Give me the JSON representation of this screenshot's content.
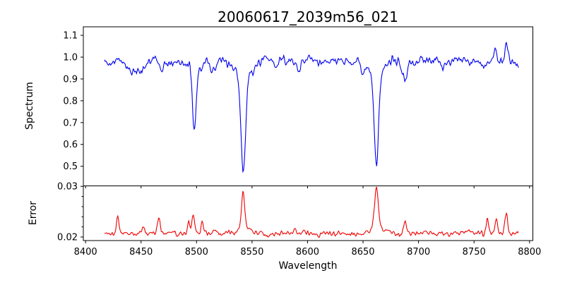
{
  "figure": {
    "title": "20060617_2039m56_021",
    "xlabel": "Wavelength",
    "background": "#ffffff",
    "axis_color": "#000000"
  },
  "chart_data": [
    {
      "id": "spectrum",
      "type": "line",
      "ylabel": "Spectrum",
      "color": "#0000ee",
      "legend": "none",
      "grid": false,
      "x_range": [
        8417,
        8790
      ],
      "xlim": [
        8398,
        8803
      ],
      "ylim": [
        0.41,
        1.139
      ],
      "xticks": [
        8400,
        8450,
        8500,
        8550,
        8600,
        8650,
        8700,
        8750,
        8800
      ],
      "ytick_labels": [
        "1.1",
        "1.0",
        "0.9",
        "0.8",
        "0.7",
        "0.6",
        "0.5"
      ],
      "ytick_values": [
        1.1,
        1.0,
        0.9,
        0.8,
        0.7,
        0.6,
        0.5
      ],
      "continuum_level": 0.975,
      "noise_sigma": 0.016,
      "absorption_lines": [
        {
          "center": 8446,
          "depth": 0.05,
          "sigma": 5.0
        },
        {
          "center": 8468,
          "depth": 0.045,
          "sigma": 1.8
        },
        {
          "center": 8498.02,
          "depth": 0.27,
          "sigma": 1.6
        },
        {
          "center": 8498.02,
          "depth": 0.055,
          "sigma": 5.0
        },
        {
          "center": 8514,
          "depth": 0.045,
          "sigma": 1.8
        },
        {
          "center": 8542.09,
          "depth": 0.42,
          "sigma": 2.0
        },
        {
          "center": 8542.09,
          "depth": 0.085,
          "sigma": 7.0
        },
        {
          "center": 8572,
          "depth": 0.035,
          "sigma": 1.6
        },
        {
          "center": 8592,
          "depth": 0.04,
          "sigma": 1.6
        },
        {
          "center": 8640,
          "depth": 0.03,
          "sigma": 1.6
        },
        {
          "center": 8650,
          "depth": 0.04,
          "sigma": 1.6
        },
        {
          "center": 8662.14,
          "depth": 0.4,
          "sigma": 1.9
        },
        {
          "center": 8662.14,
          "depth": 0.075,
          "sigma": 6.0
        },
        {
          "center": 8688,
          "depth": 0.07,
          "sigma": 2.2
        }
      ],
      "emission_spikes": [
        {
          "center": 8769,
          "height": 0.07,
          "sigma": 1.2
        },
        {
          "center": 8779,
          "height": 0.085,
          "sigma": 1.2
        }
      ],
      "notable_minima": [
        {
          "wavelength": 8498,
          "value": 0.65
        },
        {
          "wavelength": 8542,
          "value": 0.47
        },
        {
          "wavelength": 8662,
          "value": 0.5
        }
      ]
    },
    {
      "id": "error",
      "type": "line",
      "ylabel": "Error",
      "color": "#ee0000",
      "legend": "none",
      "grid": false,
      "x_range": [
        8417,
        8790
      ],
      "xlim": [
        8398,
        8803
      ],
      "ylim": [
        0.0193,
        0.0301
      ],
      "xticks": [
        8400,
        8450,
        8500,
        8550,
        8600,
        8650,
        8700,
        8750,
        8800
      ],
      "ytick_labels": [
        "0.03",
        "0.02"
      ],
      "ytick_values": [
        0.03,
        0.02
      ],
      "ytick_minor_values": [
        0.028,
        0.026,
        0.024,
        0.022
      ],
      "baseline_level": 0.0208,
      "noise_sigma": 0.0004,
      "spikes": [
        {
          "center": 8429,
          "height": 0.0029,
          "sigma": 1.1
        },
        {
          "center": 8452,
          "height": 0.0013,
          "sigma": 0.9
        },
        {
          "center": 8466,
          "height": 0.0031,
          "sigma": 1.1
        },
        {
          "center": 8493,
          "height": 0.0024,
          "sigma": 1.0
        },
        {
          "center": 8497,
          "height": 0.0036,
          "sigma": 1.1
        },
        {
          "center": 8505,
          "height": 0.0022,
          "sigma": 1.0
        },
        {
          "center": 8542,
          "height": 0.007,
          "sigma": 1.4
        },
        {
          "center": 8542,
          "height": 0.0009,
          "sigma": 5.0
        },
        {
          "center": 8662,
          "height": 0.008,
          "sigma": 1.6
        },
        {
          "center": 8662,
          "height": 0.001,
          "sigma": 6.0
        },
        {
          "center": 8688,
          "height": 0.0026,
          "sigma": 1.4
        },
        {
          "center": 8762,
          "height": 0.0027,
          "sigma": 1.1
        },
        {
          "center": 8770,
          "height": 0.0033,
          "sigma": 1.1
        },
        {
          "center": 8779,
          "height": 0.0039,
          "sigma": 1.2
        }
      ],
      "notable_maxima": [
        {
          "wavelength": 8542,
          "value": 0.0287
        },
        {
          "wavelength": 8662,
          "value": 0.03
        }
      ]
    }
  ]
}
